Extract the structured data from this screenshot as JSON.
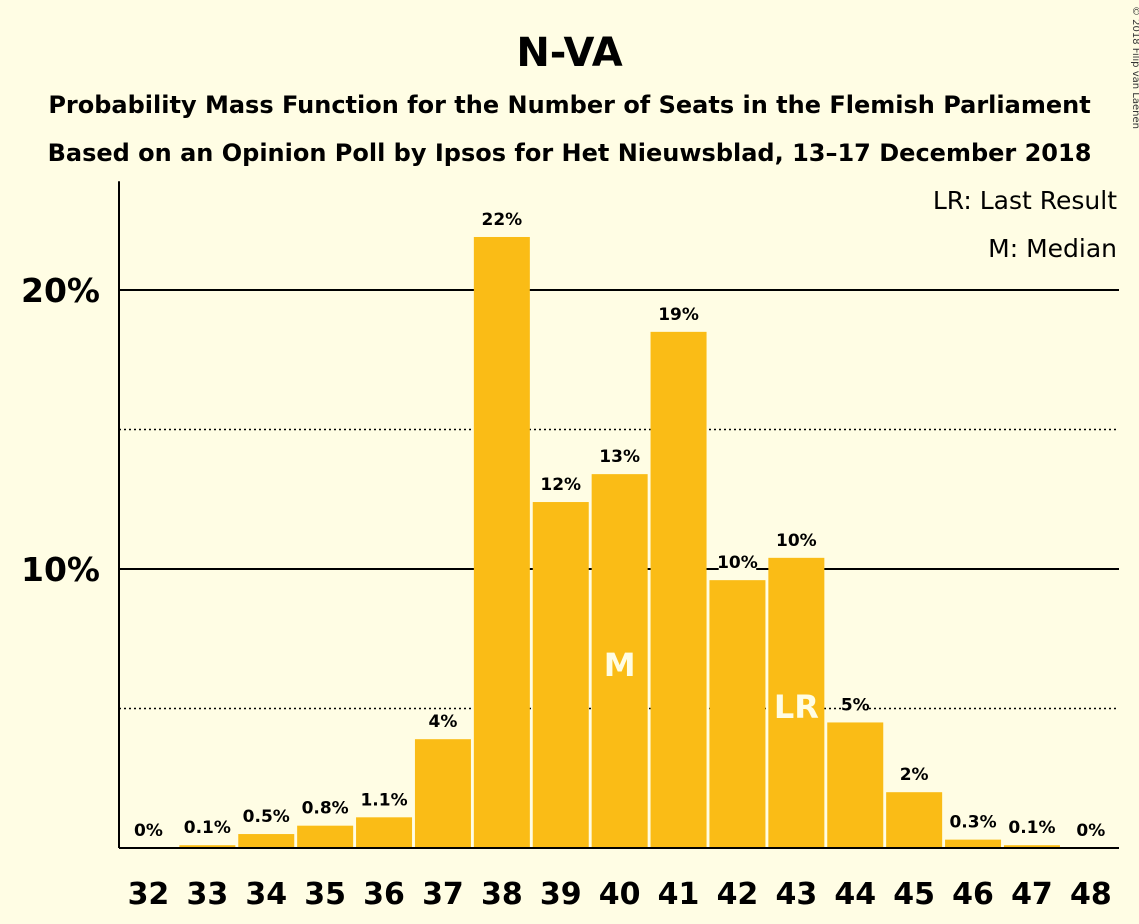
{
  "chart_data": {
    "type": "bar",
    "title": "N-VA",
    "subtitle_lines": [
      "Probability Mass Function for the Number of Seats in the Flemish Parliament",
      "Based on an Opinion Poll by Ipsos for Het Nieuwsblad, 13–17 December 2018"
    ],
    "copyright": "© 2018 Filip van Laenen",
    "legend": [
      "LR: Last Result",
      "M: Median"
    ],
    "legend_position": "top-right",
    "categories": [
      "32",
      "33",
      "34",
      "35",
      "36",
      "37",
      "38",
      "39",
      "40",
      "41",
      "42",
      "43",
      "44",
      "45",
      "46",
      "47",
      "48"
    ],
    "values": [
      0,
      0.1,
      0.5,
      0.8,
      1.1,
      3.9,
      21.9,
      12.4,
      13.4,
      18.5,
      9.6,
      10.4,
      4.5,
      2.0,
      0.3,
      0.1,
      0
    ],
    "data_labels": [
      "0%",
      "0.1%",
      "0.5%",
      "0.8%",
      "1.1%",
      "4%",
      "22%",
      "12%",
      "13%",
      "19%",
      "10%",
      "10%",
      "5%",
      "2%",
      "0.3%",
      "0.1%",
      "0%"
    ],
    "y_ticks": [
      {
        "value": 10,
        "label": "10%"
      },
      {
        "value": 20,
        "label": "20%"
      }
    ],
    "dotted_gridlines": [
      5,
      15
    ],
    "ylim": [
      0,
      23.9
    ],
    "median": {
      "seat": "40",
      "label": "M"
    },
    "last_result": {
      "seat": "43",
      "label": "LR"
    },
    "colors": {
      "bar": "#FABC16",
      "background": "#FFFDE4",
      "axis": "#000000",
      "inbar_text": "#FFFDE4"
    }
  }
}
